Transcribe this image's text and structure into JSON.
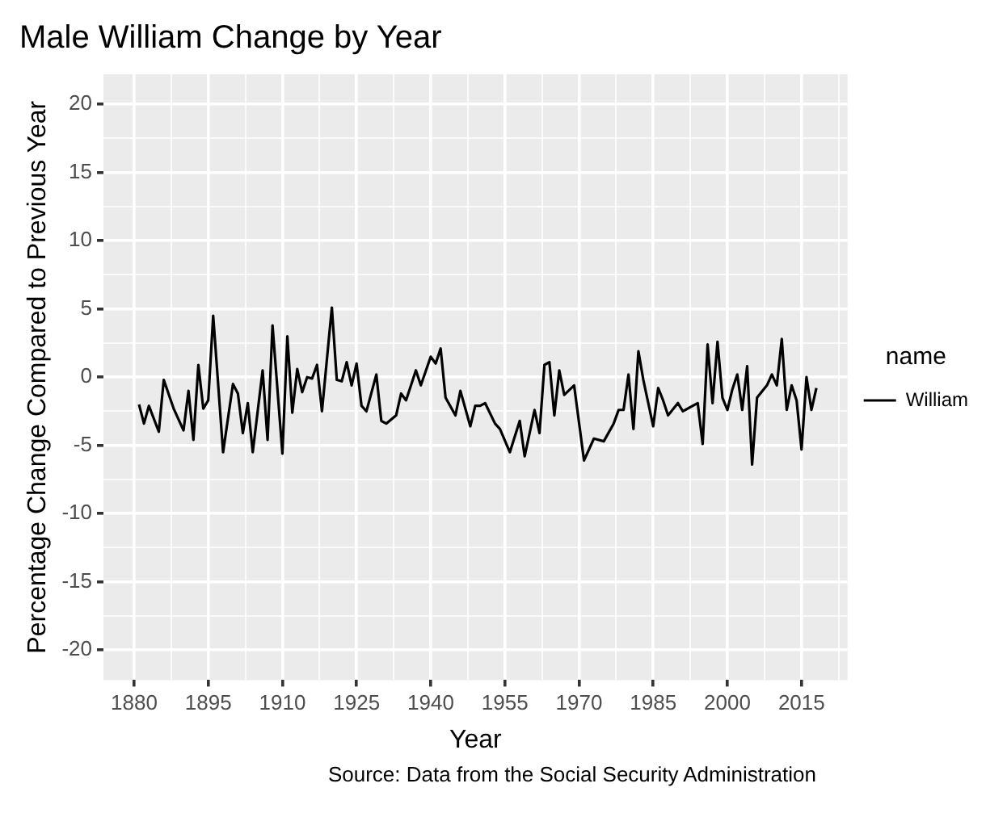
{
  "chart_data": {
    "type": "line",
    "title": "Male William Change by Year",
    "xlabel": "Year",
    "ylabel": "Percentage Change Compared to Previous Year",
    "legend_title": "name",
    "annotations": [
      "Source: Data from the Social Security Administration"
    ],
    "x": [
      1881,
      1882,
      1883,
      1885,
      1886,
      1888,
      1890,
      1891,
      1892,
      1893,
      1894,
      1895,
      1896,
      1898,
      1900,
      1901,
      1902,
      1903,
      1904,
      1906,
      1907,
      1908,
      1910,
      1911,
      1912,
      1913,
      1914,
      1915,
      1916,
      1917,
      1918,
      1920,
      1921,
      1922,
      1923,
      1924,
      1925,
      1926,
      1927,
      1929,
      1930,
      1931,
      1933,
      1934,
      1935,
      1937,
      1938,
      1940,
      1941,
      1942,
      1943,
      1945,
      1946,
      1948,
      1949,
      1950,
      1951,
      1953,
      1954,
      1956,
      1958,
      1959,
      1961,
      1962,
      1963,
      1964,
      1965,
      1966,
      1967,
      1969,
      1971,
      1973,
      1975,
      1977,
      1978,
      1979,
      1980,
      1981,
      1982,
      1983,
      1985,
      1986,
      1987,
      1988,
      1990,
      1991,
      1993,
      1994,
      1995,
      1996,
      1997,
      1998,
      1999,
      2000,
      2001,
      2002,
      2003,
      2004,
      2005,
      2006,
      2008,
      2009,
      2010,
      2011,
      2012,
      2013,
      2014,
      2015,
      2016,
      2017,
      2018
    ],
    "series": [
      {
        "name": "William",
        "color": "#000000",
        "values": [
          -2.0,
          -3.4,
          -2.1,
          -4.0,
          -0.2,
          -2.3,
          -3.9,
          -1.0,
          -4.6,
          0.9,
          -2.3,
          -1.7,
          4.5,
          -5.5,
          -0.5,
          -1.2,
          -4.1,
          -1.9,
          -5.5,
          0.5,
          -4.6,
          3.8,
          -5.6,
          3.0,
          -2.6,
          0.6,
          -1.1,
          0,
          -0.1,
          0.9,
          -2.5,
          5.1,
          -0.2,
          -0.3,
          1.1,
          -0.6,
          1.0,
          -2.1,
          -2.5,
          0.2,
          -3.2,
          -3.4,
          -2.8,
          -1.2,
          -1.7,
          0.5,
          -0.6,
          1.5,
          1.0,
          2.1,
          -1.5,
          -2.8,
          -1.0,
          -3.6,
          -2.1,
          -2.1,
          -1.9,
          -3.4,
          -3.8,
          -5.5,
          -3.2,
          -5.8,
          -2.4,
          -4.1,
          0.9,
          1.1,
          -2.8,
          0.5,
          -1.3,
          -0.6,
          -6.1,
          -4.5,
          -4.7,
          -3.4,
          -2.4,
          -2.4,
          0.2,
          -3.8,
          1.9,
          -0.2,
          -3.6,
          -0.8,
          -1.7,
          -2.8,
          -1.9,
          -2.5,
          -2.1,
          -1.9,
          -4.9,
          2.4,
          -1.9,
          2.6,
          -1.5,
          -2.4,
          -0.9,
          0.2,
          -2.4,
          0.8,
          -6.4,
          -1.5,
          -0.6,
          0.2,
          -0.6,
          2.8,
          -2.4,
          -0.6,
          -1.7,
          -5.3,
          0,
          -2.4,
          -0.8
        ]
      }
    ],
    "xlim": [
      1873.8,
      2024.3
    ],
    "ylim": [
      -22.2,
      22.2
    ],
    "xticks": [
      1880,
      {
        "value": 1887.5,
        "label": null
      },
      1895,
      {
        "value": 1902.5,
        "label": null
      },
      1910,
      {
        "value": 1917.5,
        "label": null
      },
      1925,
      {
        "value": 1932.5,
        "label": null
      },
      1940,
      {
        "value": 1947.5,
        "label": null
      },
      1955,
      {
        "value": 1962.5,
        "label": null
      },
      1970,
      {
        "value": 1977.5,
        "label": null
      },
      1985,
      {
        "value": 1992.5,
        "label": null
      },
      2000,
      {
        "value": 2007.5,
        "label": null
      },
      2015,
      {
        "value": 2022.5,
        "label": null
      }
    ],
    "yticks": [
      -20,
      {
        "value": -17.5,
        "label": null
      },
      -15,
      {
        "value": -12.5,
        "label": null
      },
      -10,
      {
        "value": -7.5,
        "label": null
      },
      -5,
      {
        "value": -2.5,
        "label": null
      },
      0,
      {
        "value": 2.5,
        "label": null
      },
      5,
      {
        "value": 7.5,
        "label": null
      },
      10,
      {
        "value": 12.5,
        "label": null
      },
      15,
      {
        "value": 17.5,
        "label": null
      },
      20
    ],
    "grid": true,
    "legend": "right",
    "marker": "none",
    "line_style": "solid"
  }
}
